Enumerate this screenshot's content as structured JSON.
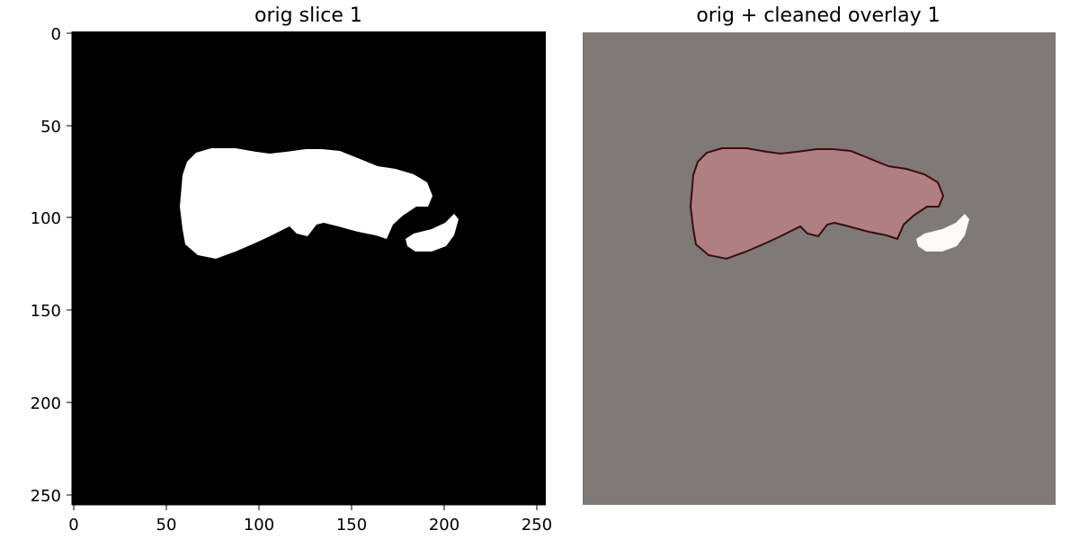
{
  "panels": [
    {
      "title": "orig slice 1",
      "background": "#000000",
      "mask_fill": "#ffffff"
    },
    {
      "title": "orig + cleaned overlay 1",
      "background": "#7f7a77",
      "mask_fill": "#b07f81",
      "outline": "#3a0d12",
      "small_fill": "#fffaf6"
    }
  ],
  "axes": {
    "y_ticks": [
      "0",
      "50",
      "100",
      "150",
      "200",
      "250"
    ],
    "x_ticks": [
      "0",
      "50",
      "100",
      "150",
      "200",
      "250"
    ],
    "range": [
      0,
      256
    ]
  }
}
